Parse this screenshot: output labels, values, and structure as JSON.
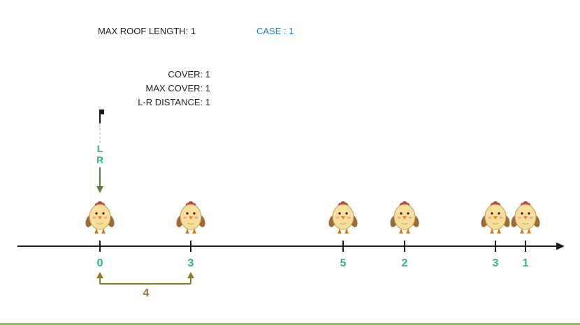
{
  "header": {
    "max_roof_length": "MAX ROOF LENGTH: 1",
    "case": "CASE : 1"
  },
  "info": {
    "cover": "COVER: 1",
    "max_cover": "MAX COVER: 1",
    "lr_distance": "L-R DISTANCE: 1"
  },
  "pointers": {
    "left": "L",
    "right": "R"
  },
  "points": [
    {
      "label": "0"
    },
    {
      "label": "3"
    },
    {
      "label": "5"
    },
    {
      "label": "2"
    },
    {
      "label": "3"
    },
    {
      "label": "1"
    }
  ],
  "distance_bracket": {
    "label": "4",
    "from_index": 0,
    "to_index": 1
  },
  "colors": {
    "axis": "#1a1a1a",
    "tick_label": "#2db57a",
    "pointer": "#5a7f3a",
    "bracket": "#8a7a2a",
    "case_text": "#2e7cb8"
  },
  "icons": {
    "chick": "chick-icon",
    "flag": "flag-icon"
  }
}
